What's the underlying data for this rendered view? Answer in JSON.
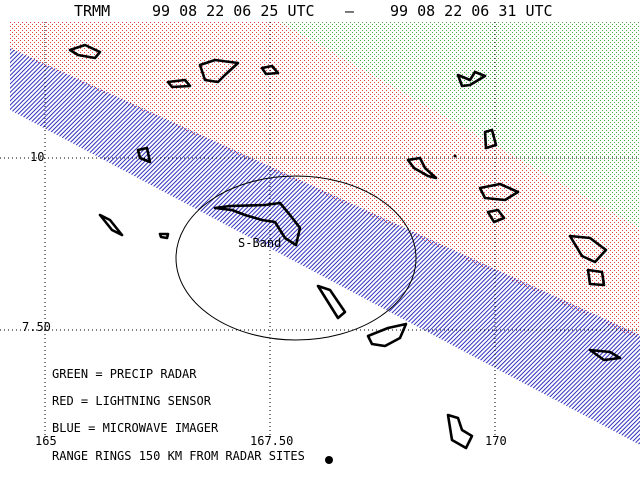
{
  "header": {
    "satellite": "TRMM",
    "start_time": "99 08 22 06 25 UTC",
    "separator": "—",
    "end_time": "99 08 22 06 31 UTC"
  },
  "latitude_labels": [
    "10",
    "7.50"
  ],
  "longitude_labels": [
    "165",
    "167.50",
    "170"
  ],
  "radar_site": "S-Band",
  "legend": [
    "GREEN = PRECIP RADAR",
    "RED = LIGHTNING SENSOR",
    "BLUE = MICROWAVE IMAGER",
    "RANGE RINGS 150 KM FROM RADAR SITES"
  ]
}
